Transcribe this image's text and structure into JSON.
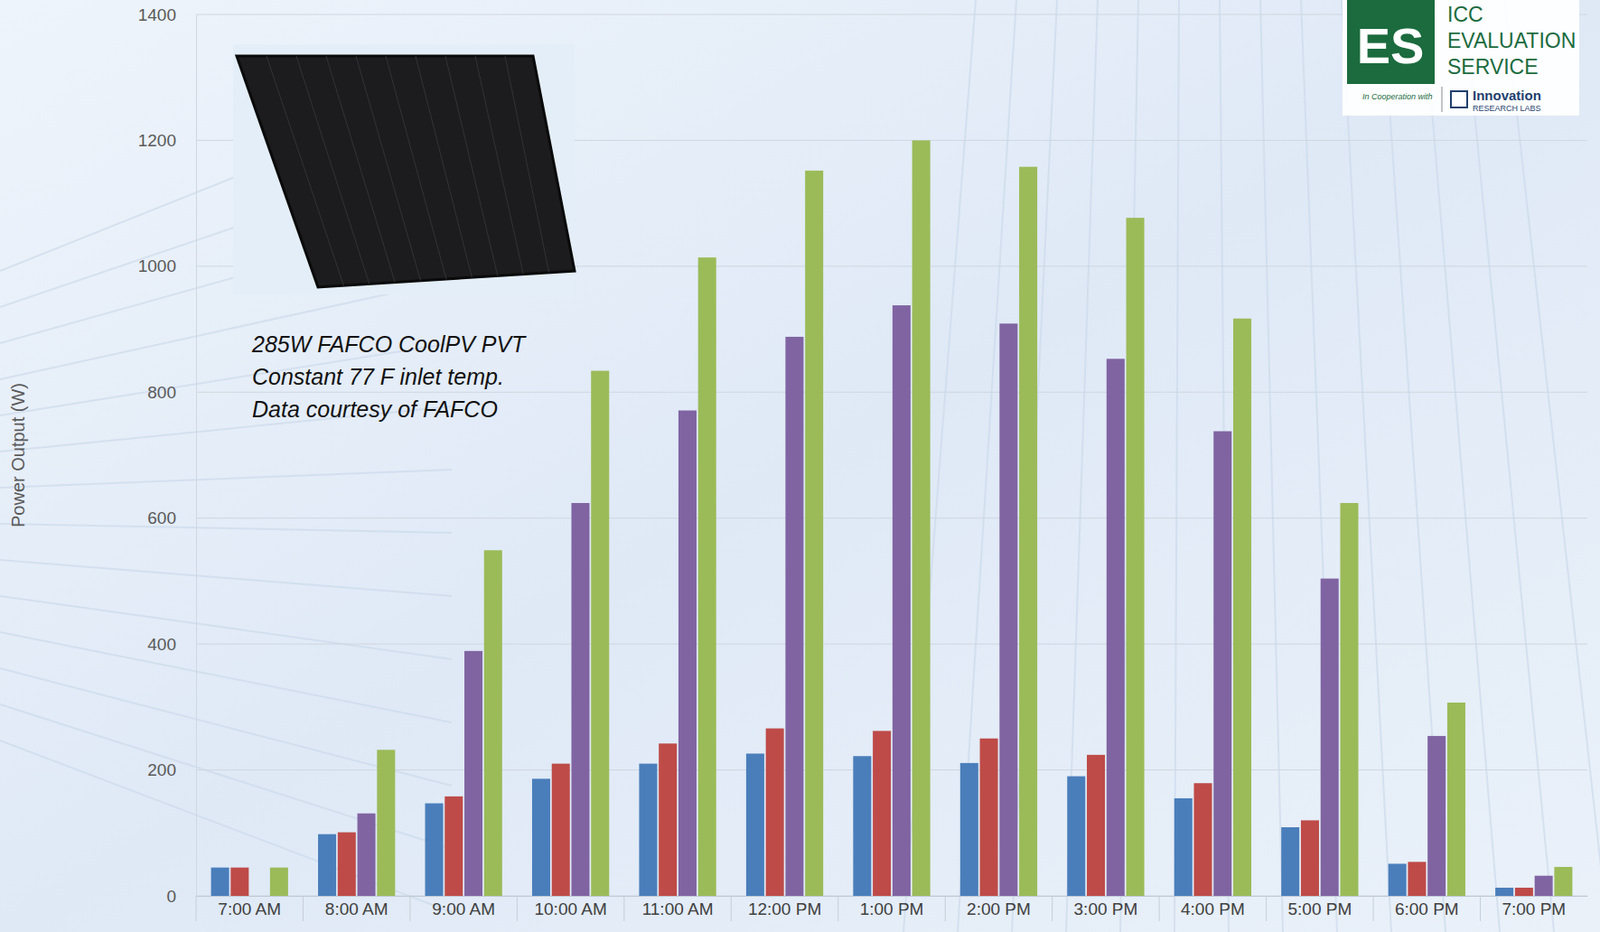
{
  "chart_data": {
    "type": "bar",
    "y_label": "Power Output (W)",
    "annotations": [
      "285W FAFCO CoolPV PVT",
      "Constant 77 F inlet temp.",
      "Data courtesy of FAFCO"
    ],
    "logo": {
      "mark": "ES",
      "lines": [
        "ICC",
        "EVALUATION",
        "SERVICE"
      ],
      "note": "In Cooperation with",
      "partner": "Innovation",
      "partner_sub": "RESEARCH LABS"
    },
    "categories": [
      "7:00 AM",
      "8:00 AM",
      "9:00 AM",
      "10:00 AM",
      "11:00 AM",
      "12:00 PM",
      "1:00 PM",
      "2:00 PM",
      "3:00 PM",
      "4:00 PM",
      "5:00 PM",
      "6:00 PM",
      "7:00 PM"
    ],
    "series": [
      {
        "color": "#4a7ebb",
        "values": [
          45,
          98,
          147,
          186,
          210,
          226,
          222,
          211,
          190,
          155,
          109,
          51,
          13
        ]
      },
      {
        "color": "#be4b48",
        "values": [
          45,
          101,
          158,
          210,
          242,
          266,
          262,
          250,
          224,
          179,
          120,
          54,
          13
        ]
      },
      {
        "color": "#8064a2",
        "values": [
          null,
          131,
          389,
          624,
          771,
          888,
          938,
          909,
          853,
          738,
          504,
          254,
          32
        ]
      },
      {
        "color": "#9bbb59",
        "values": [
          45,
          232,
          549,
          834,
          1014,
          1152,
          1200,
          1158,
          1077,
          917,
          624,
          307,
          46
        ]
      }
    ],
    "ylim": [
      0,
      1400
    ],
    "yticks": [
      0,
      200,
      400,
      600,
      800,
      1000,
      1200,
      1400
    ],
    "grid": true
  }
}
